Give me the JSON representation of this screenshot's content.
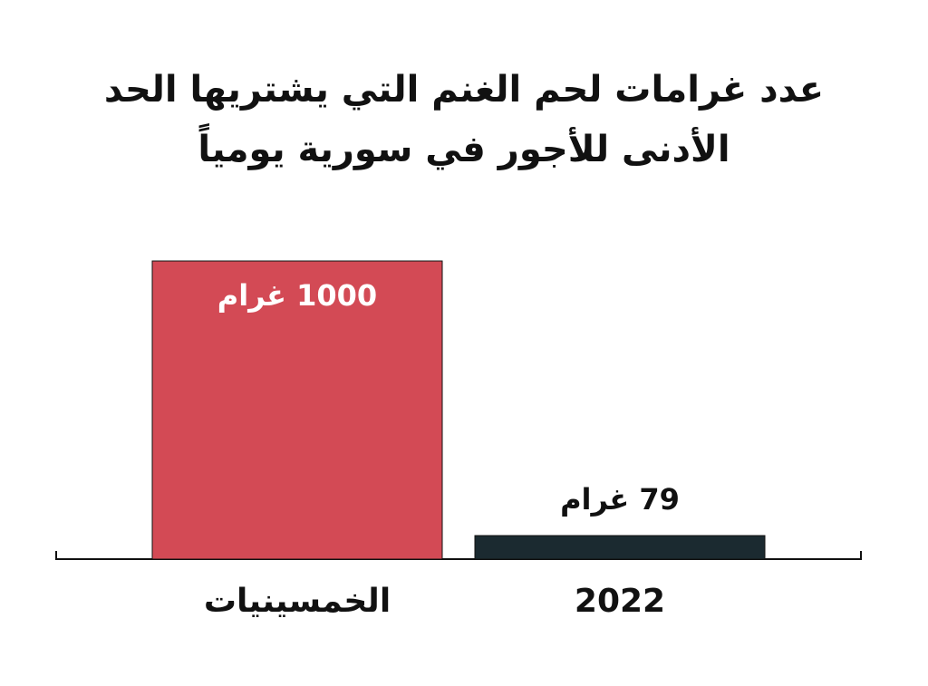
{
  "chart_data": {
    "type": "bar",
    "title": "عدد غرامات لحم الغنم التي يشتريها الحد الأدنى للأجور في سورية يومياً",
    "categories": [
      "الخمسينيات",
      "2022"
    ],
    "values": [
      1000,
      79
    ],
    "value_labels": [
      "1000 غرام",
      "79 غرام"
    ],
    "colors": [
      "#d34a55",
      "#1b2a30"
    ],
    "ylim": [
      0,
      1000
    ]
  }
}
